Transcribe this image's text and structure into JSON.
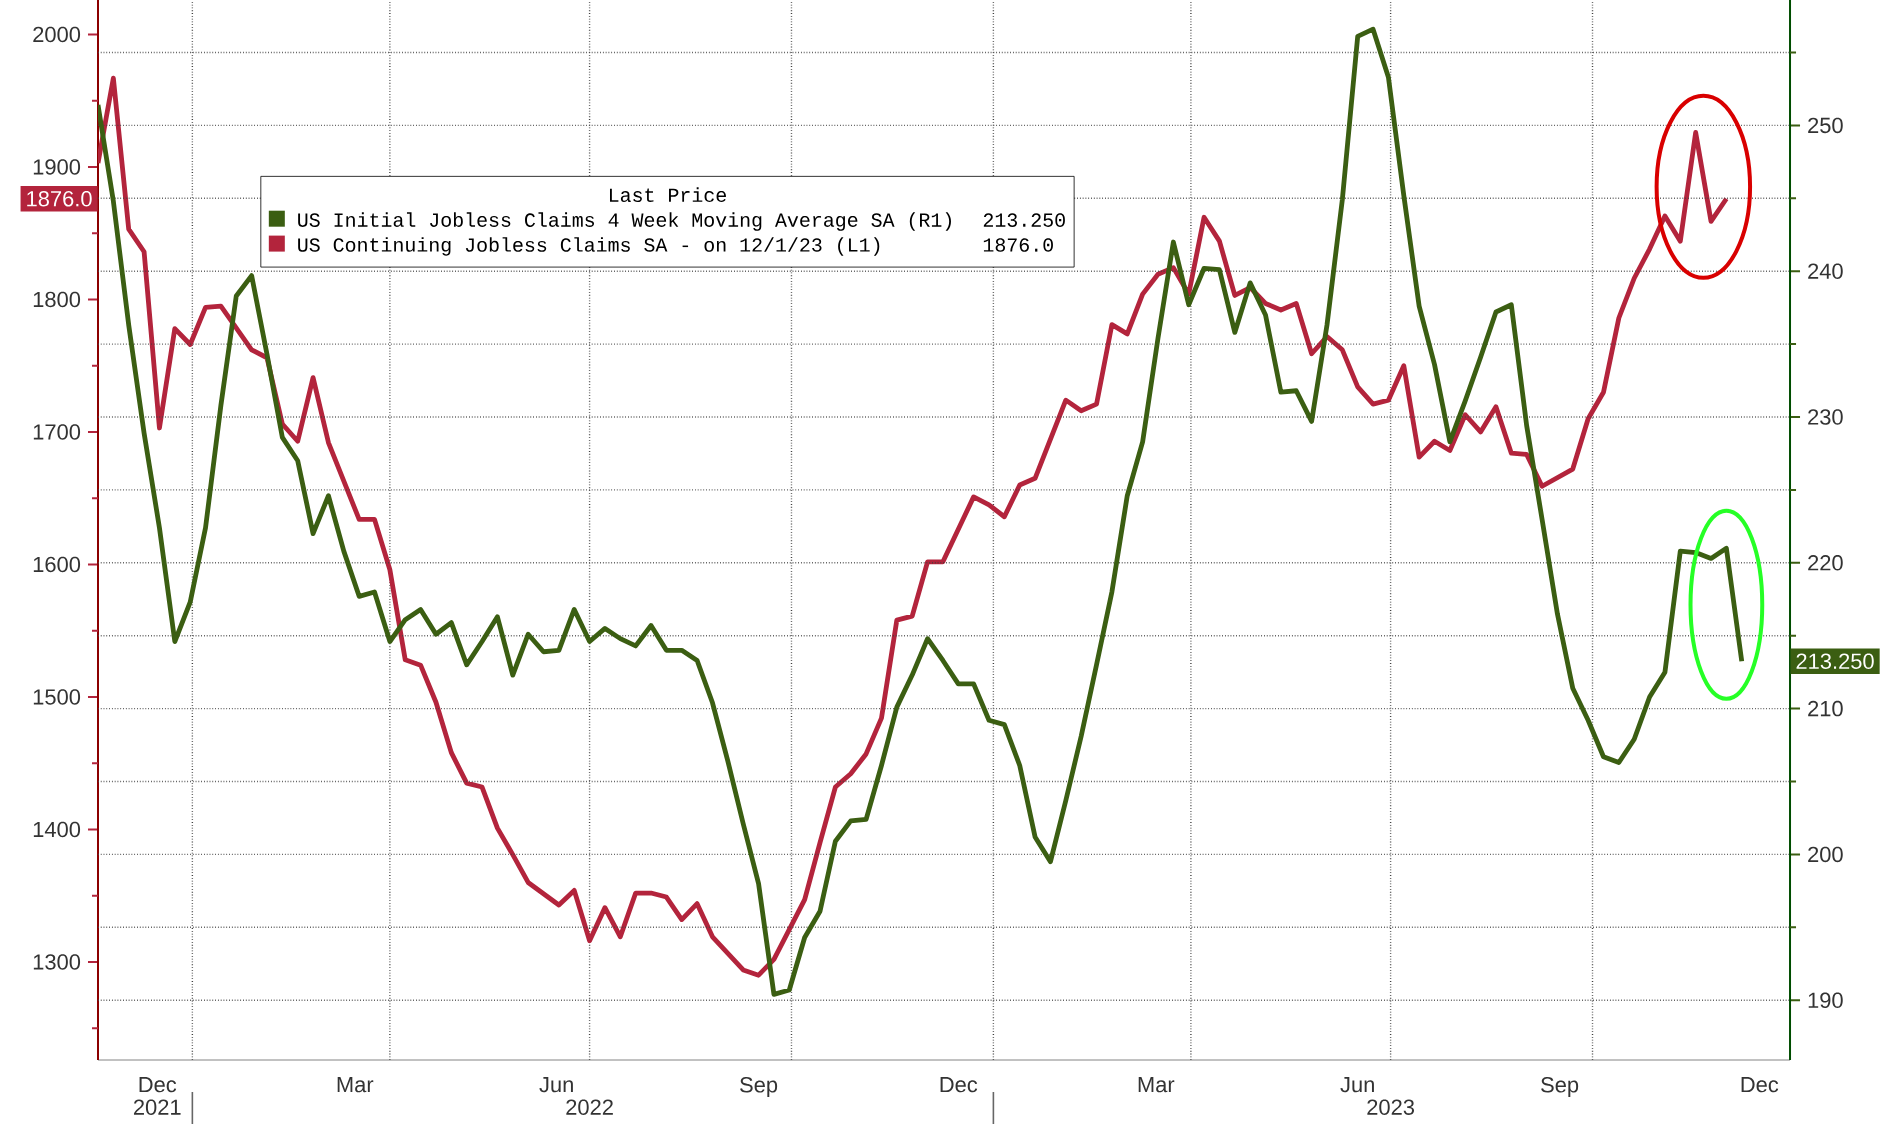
{
  "chart_data": {
    "type": "line",
    "x": [
      "2021-11-19",
      "2021-11-26",
      "2021-12-03",
      "2021-12-10",
      "2021-12-17",
      "2021-12-24",
      "2021-12-31",
      "2022-01-07",
      "2022-01-14",
      "2022-01-21",
      "2022-01-28",
      "2022-02-04",
      "2022-02-11",
      "2022-02-18",
      "2022-02-25",
      "2022-03-04",
      "2022-03-11",
      "2022-03-18",
      "2022-03-25",
      "2022-04-01",
      "2022-04-08",
      "2022-04-15",
      "2022-04-22",
      "2022-04-29",
      "2022-05-06",
      "2022-05-13",
      "2022-05-20",
      "2022-05-27",
      "2022-06-03",
      "2022-06-10",
      "2022-06-17",
      "2022-06-24",
      "2022-07-01",
      "2022-07-08",
      "2022-07-15",
      "2022-07-22",
      "2022-07-29",
      "2022-08-05",
      "2022-08-12",
      "2022-08-19",
      "2022-08-26",
      "2022-09-02",
      "2022-09-09",
      "2022-09-16",
      "2022-09-23",
      "2022-09-30",
      "2022-10-07",
      "2022-10-14",
      "2022-10-21",
      "2022-10-28",
      "2022-11-04",
      "2022-11-11",
      "2022-11-18",
      "2022-11-25",
      "2022-12-02",
      "2022-12-09",
      "2022-12-16",
      "2022-12-23",
      "2022-12-30",
      "2023-01-06",
      "2023-01-13",
      "2023-01-20",
      "2023-01-27",
      "2023-02-03",
      "2023-02-10",
      "2023-02-17",
      "2023-02-24",
      "2023-03-03",
      "2023-03-10",
      "2023-03-17",
      "2023-03-24",
      "2023-03-31",
      "2023-04-07",
      "2023-04-14",
      "2023-04-21",
      "2023-04-28",
      "2023-05-05",
      "2023-05-12",
      "2023-05-19",
      "2023-05-26",
      "2023-06-02",
      "2023-06-09",
      "2023-06-16",
      "2023-06-23",
      "2023-06-30",
      "2023-07-07",
      "2023-07-14",
      "2023-07-21",
      "2023-07-28",
      "2023-08-04",
      "2023-08-11",
      "2023-08-18",
      "2023-08-25",
      "2023-09-01",
      "2023-09-08",
      "2023-09-15",
      "2023-09-22",
      "2023-09-29",
      "2023-10-06",
      "2023-10-13",
      "2023-10-20",
      "2023-10-27",
      "2023-11-03",
      "2023-11-10",
      "2023-11-17",
      "2023-11-24",
      "2023-12-01",
      "2023-12-08"
    ],
    "xlim": [
      "2021-11-19",
      "2023-12-30"
    ],
    "xticks": [
      {
        "value": "2021-12-16",
        "label": "Dec"
      },
      {
        "value": "2022-03-16",
        "label": "Mar"
      },
      {
        "value": "2022-06-16",
        "label": "Jun"
      },
      {
        "value": "2022-09-16",
        "label": "Sep"
      },
      {
        "value": "2022-12-16",
        "label": "Dec"
      },
      {
        "value": "2023-03-16",
        "label": "Mar"
      },
      {
        "value": "2023-06-16",
        "label": "Jun"
      },
      {
        "value": "2023-09-16",
        "label": "Sep"
      },
      {
        "value": "2023-12-16",
        "label": "Dec"
      },
      {
        "value": "2022-01-01",
        "label": null
      },
      {
        "value": "2022-04-01",
        "label": null
      },
      {
        "value": "2022-07-01",
        "label": null
      },
      {
        "value": "2022-10-01",
        "label": null
      },
      {
        "value": "2023-01-01",
        "label": null
      },
      {
        "value": "2023-04-01",
        "label": null
      },
      {
        "value": "2023-07-01",
        "label": null
      },
      {
        "value": "2023-10-01",
        "label": null
      }
    ],
    "x2lim": [
      "2021-11-19",
      "2023-12-30"
    ],
    "x2ticks": [
      {
        "value": "2021-12-16",
        "label": "2021"
      },
      {
        "value": "2022-07-01",
        "label": "2022"
      },
      {
        "value": "2023-07-01",
        "label": "2023"
      },
      {
        "value": "2022-01-01",
        "label": null
      },
      {
        "value": "2023-01-01",
        "label": null
      }
    ],
    "ylim": [
      1226,
      2026
    ],
    "yticks": [
      1300,
      1400,
      1500,
      1600,
      1700,
      1800,
      1900,
      2000,
      {
        "value": 1250,
        "label": null
      },
      {
        "value": 1350,
        "label": null
      },
      {
        "value": 1450,
        "label": null
      },
      {
        "value": 1550,
        "label": null
      },
      {
        "value": 1650,
        "label": null
      },
      {
        "value": 1750,
        "label": null
      },
      {
        "value": 1850,
        "label": null
      },
      {
        "value": 1950,
        "label": null
      }
    ],
    "y2lim": [
      185.9,
      258.6
    ],
    "y2ticks": [
      190,
      200,
      210,
      220,
      230,
      240,
      250,
      {
        "value": 195,
        "label": null
      },
      {
        "value": 205,
        "label": null
      },
      {
        "value": 215,
        "label": null
      },
      {
        "value": 225,
        "label": null
      },
      {
        "value": 235,
        "label": null
      },
      {
        "value": 245,
        "label": null
      },
      {
        "value": 255,
        "label": null
      }
    ],
    "grid": true,
    "legend": "top left",
    "legend_title": "Last Price",
    "annotations": [
      "213.250",
      "1876.0"
    ],
    "series": [
      {
        "name": "US Initial Jobless Claims 4 Week Moving Average SA (R1)",
        "color": "#3b5e12",
        "axis": "y2",
        "values": [
          251.4,
          244.8,
          236.3,
          228.9,
          222.4,
          214.6,
          217.3,
          222.4,
          230.8,
          238.3,
          239.7,
          234.3,
          228.6,
          227.0,
          222.0,
          224.6,
          220.8,
          217.7,
          218.0,
          214.6,
          216.1,
          216.8,
          215.1,
          215.9,
          213.0,
          214.6,
          216.3,
          212.3,
          215.1,
          213.9,
          214.0,
          216.8,
          214.6,
          215.5,
          214.8,
          214.3,
          215.7,
          214.0,
          214.0,
          213.3,
          210.4,
          206.4,
          202.1,
          198.0,
          190.4,
          190.7,
          194.3,
          196.1,
          200.9,
          202.3,
          202.4,
          206.1,
          210.1,
          212.3,
          214.8,
          213.3,
          211.7,
          211.7,
          209.2,
          208.9,
          206.1,
          201.2,
          199.5,
          203.7,
          208.1,
          213.0,
          218.0,
          224.6,
          228.3,
          235.4,
          242.0,
          237.7,
          240.2,
          240.1,
          235.8,
          239.2,
          237.0,
          231.7,
          231.8,
          229.7,
          236.3,
          244.9,
          256.1,
          256.6,
          253.3,
          245.2,
          237.6,
          233.6,
          228.3,
          231.1,
          234.1,
          237.2,
          237.7,
          229.4,
          223.0,
          216.5,
          211.4,
          209.2,
          206.7,
          206.3,
          207.9,
          210.8,
          212.5,
          220.8,
          220.7,
          220.3,
          221.0,
          213.25
        ]
      },
      {
        "name": "US Continuing Jobless Claims SA - on 12/1/23 (L1)",
        "color": "#b3243c",
        "x": [
          "2021-11-19",
          "2021-11-26",
          "2021-12-03",
          "2021-12-10",
          "2021-12-17",
          "2021-12-24",
          "2021-12-31",
          "2022-01-07",
          "2022-01-14",
          "2022-01-28",
          "2022-02-04",
          "2022-02-11",
          "2022-02-18",
          "2022-02-25",
          "2022-03-04",
          "2022-03-18",
          "2022-03-25",
          "2022-04-01",
          "2022-04-08",
          "2022-04-15",
          "2022-04-22",
          "2022-04-29",
          "2022-05-06",
          "2022-05-13",
          "2022-05-20",
          "2022-05-27",
          "2022-06-03",
          "2022-06-17",
          "2022-06-24",
          "2022-07-01",
          "2022-07-08",
          "2022-07-15",
          "2022-07-22",
          "2022-07-29",
          "2022-08-05",
          "2022-08-12",
          "2022-08-19",
          "2022-08-26",
          "2022-09-09",
          "2022-09-16",
          "2022-09-23",
          "2022-10-07",
          "2022-10-14",
          "2022-10-21",
          "2022-10-28",
          "2022-11-04",
          "2022-11-11",
          "2022-11-18",
          "2022-11-25",
          "2022-12-02",
          "2022-12-09",
          "2022-12-23",
          "2022-12-30",
          "2023-01-06",
          "2023-01-13",
          "2023-01-20",
          "2023-02-03",
          "2023-02-10",
          "2023-02-17",
          "2023-02-24",
          "2023-03-03",
          "2023-03-10",
          "2023-03-17",
          "2023-03-24",
          "2023-03-31",
          "2023-04-07",
          "2023-04-14",
          "2023-04-21",
          "2023-04-28",
          "2023-05-05",
          "2023-05-12",
          "2023-05-19",
          "2023-05-26",
          "2023-06-02",
          "2023-06-09",
          "2023-06-16",
          "2023-06-23",
          "2023-06-30",
          "2023-07-07",
          "2023-07-14",
          "2023-07-21",
          "2023-07-28",
          "2023-08-04",
          "2023-08-11",
          "2023-08-18",
          "2023-08-25",
          "2023-09-01",
          "2023-09-08",
          "2023-09-22",
          "2023-09-29",
          "2023-10-06",
          "2023-10-13",
          "2023-10-20",
          "2023-10-27",
          "2023-11-03",
          "2023-11-10",
          "2023-11-17",
          "2023-11-24",
          "2023-12-01"
        ],
        "values": [
          1903,
          1967,
          1853,
          1836,
          1703,
          1778,
          1766,
          1794,
          1795,
          1762,
          1756,
          1706,
          1693,
          1741,
          1692,
          1634,
          1634,
          1596,
          1528,
          1524,
          1496,
          1458,
          1435,
          1432,
          1401,
          1381,
          1360,
          1343,
          1354,
          1316,
          1341,
          1319,
          1352,
          1352,
          1349,
          1332,
          1344,
          1319,
          1294,
          1290,
          1302,
          1347,
          1390,
          1432,
          1442,
          1457,
          1484,
          1558,
          1561,
          1602,
          1602,
          1651,
          1645,
          1636,
          1660,
          1665,
          1724,
          1716,
          1721,
          1781,
          1774,
          1804,
          1819,
          1824,
          1804,
          1862,
          1844,
          1803,
          1809,
          1797,
          1792,
          1797,
          1759,
          1772,
          1762,
          1734,
          1721,
          1724,
          1750,
          1681,
          1693,
          1686,
          1713,
          1700,
          1719,
          1684,
          1683,
          1659,
          1672,
          1710,
          1730,
          1786,
          1816,
          1838,
          1863,
          1844,
          1926,
          1859,
          1876
        ]
      }
    ]
  }
}
